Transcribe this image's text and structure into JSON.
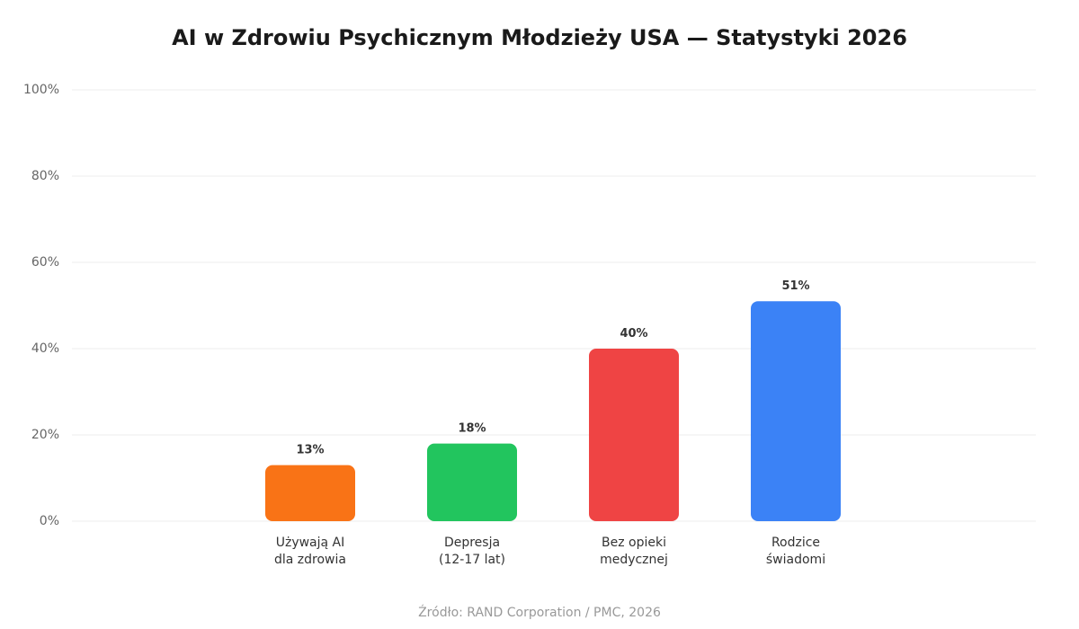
{
  "chart_data": {
    "type": "bar",
    "title": "AI w Zdrowiu Psychicznym Młodzieży USA — Statystyki 2026",
    "categories": [
      [
        "Używają AI",
        "dla zdrowia"
      ],
      [
        "Depresja",
        "(12-17 lat)"
      ],
      [
        "Bez opieki",
        "medycznej"
      ],
      [
        "Rodzice",
        "świadomi"
      ]
    ],
    "values": [
      13,
      18,
      40,
      51
    ],
    "value_labels": [
      "13%",
      "18%",
      "40%",
      "51%"
    ],
    "colors": [
      "#f97316",
      "#22c55e",
      "#ef4444",
      "#3b82f6"
    ],
    "ylim": [
      0,
      100
    ],
    "yticks": [
      0,
      20,
      40,
      60,
      80,
      100
    ],
    "ytick_labels": [
      "0%",
      "20%",
      "40%",
      "60%",
      "80%",
      "100%"
    ],
    "grid": true,
    "xlabel": "",
    "ylabel": ""
  },
  "source": "Źródło: RAND Corporation / PMC, 2026"
}
